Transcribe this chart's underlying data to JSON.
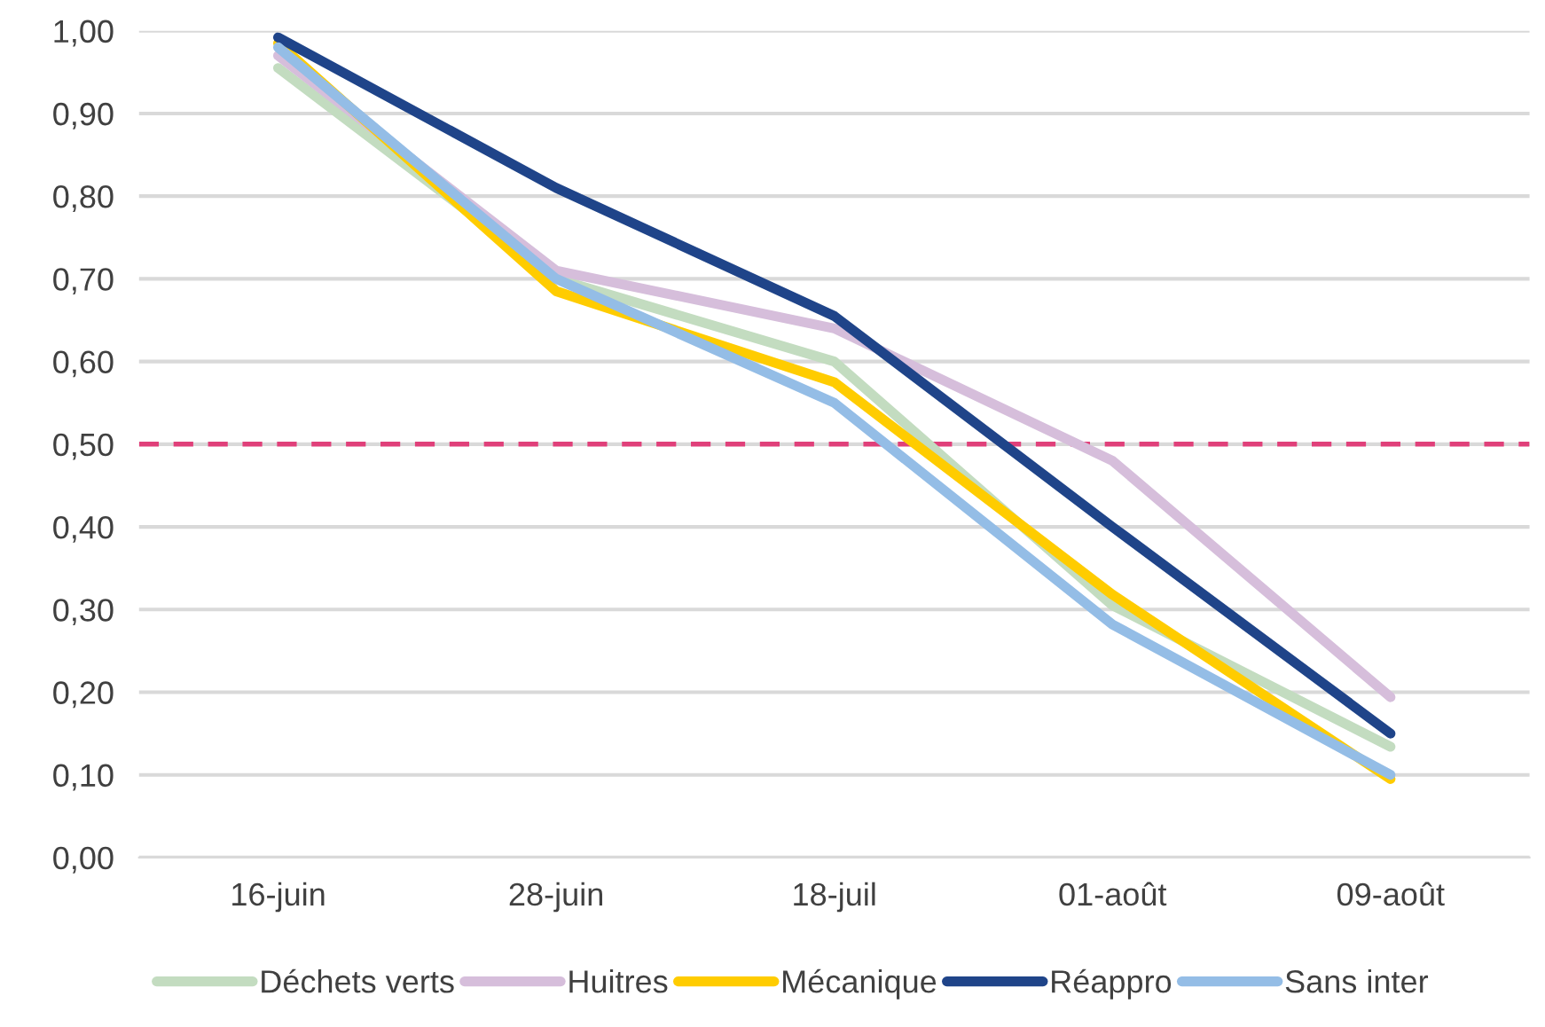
{
  "chart_data": {
    "type": "line",
    "categories": [
      "16-juin",
      "28-juin",
      "18-juil",
      "01-août",
      "09-août"
    ],
    "series": [
      {
        "name": "Déchets verts",
        "color": "#c3dcc0",
        "values": [
          0.955,
          0.7,
          0.6,
          0.305,
          0.134
        ]
      },
      {
        "name": "Huitres",
        "color": "#d6bedb",
        "values": [
          0.97,
          0.71,
          0.64,
          0.48,
          0.194
        ]
      },
      {
        "name": "Mécanique",
        "color": "#ffcc00",
        "values": [
          0.985,
          0.685,
          0.575,
          0.318,
          0.095
        ]
      },
      {
        "name": "Réappro",
        "color": "#1f4489",
        "values": [
          0.992,
          0.81,
          0.655,
          0.4,
          0.15
        ]
      },
      {
        "name": "Sans inter",
        "color": "#94bde6",
        "values": [
          0.98,
          0.7,
          0.55,
          0.282,
          0.1
        ]
      }
    ],
    "ylim": [
      0,
      1
    ],
    "yticks": [
      {
        "value": 0,
        "label": "0,00"
      },
      {
        "value": 0.1,
        "label": "0,10"
      },
      {
        "value": 0.2,
        "label": "0,20"
      },
      {
        "value": 0.3,
        "label": "0,30"
      },
      {
        "value": 0.4,
        "label": "0,40"
      },
      {
        "value": 0.5,
        "label": "0,50"
      },
      {
        "value": 0.6,
        "label": "0,60"
      },
      {
        "value": 0.7,
        "label": "0,70"
      },
      {
        "value": 0.8,
        "label": "0,80"
      },
      {
        "value": 0.9,
        "label": "0,90"
      },
      {
        "value": 1,
        "label": "1,00"
      }
    ],
    "ref_lines": [
      {
        "axis": "y",
        "value": 0.5,
        "color": "#e0407a",
        "line_style": "dashed"
      }
    ],
    "grid": "y",
    "legend": "bottom",
    "marker": "none",
    "line_style": "solid"
  }
}
